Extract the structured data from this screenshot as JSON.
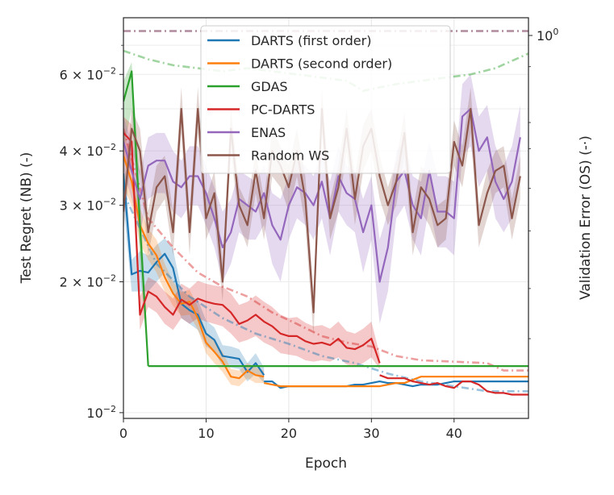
{
  "chart_data": {
    "type": "line",
    "title": "",
    "xlabel": "Epoch",
    "ylabel": "Test Regret (NB) (-)",
    "ylabel_right": "Validation Error (OS) (-·)",
    "xlim": [
      0,
      49
    ],
    "ylim": [
      0.0097,
      0.081
    ],
    "yscale": "log",
    "grid": true,
    "legend_position": "top-center",
    "x_ticks": [
      {
        "value": 0,
        "label": "0"
      },
      {
        "value": 10,
        "label": "10"
      },
      {
        "value": 20,
        "label": "20"
      },
      {
        "value": 30,
        "label": "30"
      },
      {
        "value": 40,
        "label": "40"
      }
    ],
    "y_ticks": [
      {
        "value": 0.01,
        "mantissa": "",
        "exponent": "−2"
      },
      {
        "value": 0.02,
        "mantissa": "2 × ",
        "exponent": "−2"
      },
      {
        "value": 0.03,
        "mantissa": "3 × ",
        "exponent": "−2"
      },
      {
        "value": 0.04,
        "mantissa": "4 × ",
        "exponent": "−2"
      },
      {
        "value": 0.06,
        "mantissa": "6 × ",
        "exponent": "−2"
      }
    ],
    "y_minor_ticks": [
      0.05,
      0.07
    ],
    "y2_tick_label": {
      "base": "10",
      "exponent": "0"
    },
    "series": [
      {
        "name": "DARTS (first order)",
        "color": "#1f77b4",
        "x": [
          0,
          1,
          2,
          3,
          4,
          5,
          6,
          7,
          8,
          9,
          10,
          11,
          12,
          13,
          14,
          15,
          16,
          17
        ],
        "values": [
          0.0355,
          0.0208,
          0.0212,
          0.021,
          0.0222,
          0.0232,
          0.0215,
          0.0178,
          0.0172,
          0.0168,
          0.0152,
          0.0147,
          0.0135,
          0.0134,
          0.0133,
          0.0124,
          0.013,
          0.0122
        ],
        "band_low": [
          0.03,
          0.019,
          0.019,
          0.019,
          0.02,
          0.021,
          0.019,
          0.0165,
          0.016,
          0.0155,
          0.0142,
          0.0138,
          0.0128,
          0.0127,
          0.0126,
          0.0118,
          0.0123,
          0.0117
        ],
        "band_high": [
          0.041,
          0.0225,
          0.0235,
          0.023,
          0.0243,
          0.0252,
          0.0238,
          0.0192,
          0.0185,
          0.0182,
          0.0163,
          0.0157,
          0.0143,
          0.0142,
          0.014,
          0.013,
          0.0137,
          0.0127
        ]
      },
      {
        "name": "DARTS (second order)",
        "color": "#ff7f0e",
        "x": [
          0,
          1,
          2,
          3,
          4,
          5,
          6,
          7,
          8,
          9,
          10,
          11,
          12,
          13,
          14,
          15,
          16,
          17
        ],
        "values": [
          0.039,
          0.034,
          0.027,
          0.0245,
          0.023,
          0.0205,
          0.0188,
          0.0178,
          0.018,
          0.0165,
          0.0145,
          0.0138,
          0.0131,
          0.0121,
          0.012,
          0.0125,
          0.0122,
          0.0121
        ],
        "band_low": [
          0.033,
          0.03,
          0.0245,
          0.0225,
          0.021,
          0.019,
          0.0176,
          0.0167,
          0.0168,
          0.0155,
          0.0137,
          0.013,
          0.0124,
          0.0116,
          0.0115,
          0.012,
          0.0117,
          0.0117
        ],
        "band_high": [
          0.045,
          0.038,
          0.0295,
          0.0265,
          0.025,
          0.022,
          0.02,
          0.0189,
          0.0192,
          0.0175,
          0.0153,
          0.0146,
          0.0138,
          0.0126,
          0.0125,
          0.013,
          0.0127,
          0.0125
        ]
      },
      {
        "name": "GDAS",
        "color": "#2ca02c",
        "x": [
          0,
          1,
          2,
          3
        ],
        "values": [
          0.052,
          0.061,
          0.027,
          0.0128
        ],
        "band_low": [
          0.04,
          0.05,
          0.022,
          0.0127
        ],
        "band_high": [
          0.058,
          0.064,
          0.033,
          0.0129
        ]
      },
      {
        "name": "PC-DARTS",
        "color": "#d62728",
        "x": [
          0,
          1,
          2,
          3,
          4,
          5,
          6,
          7,
          8,
          9,
          10,
          11,
          12,
          13,
          14,
          15,
          16,
          17,
          18,
          19,
          20,
          21,
          22,
          23,
          24,
          25,
          26,
          27,
          28,
          29,
          30,
          31
        ],
        "values": [
          0.044,
          0.042,
          0.0168,
          0.019,
          0.0185,
          0.0175,
          0.0168,
          0.0182,
          0.0177,
          0.0183,
          0.018,
          0.0178,
          0.0177,
          0.017,
          0.016,
          0.0163,
          0.0168,
          0.0162,
          0.0158,
          0.0152,
          0.015,
          0.015,
          0.0146,
          0.0144,
          0.0145,
          0.0143,
          0.0148,
          0.0141,
          0.014,
          0.0143,
          0.0148,
          0.013
        ],
        "band_low": [
          0.038,
          0.036,
          0.0155,
          0.0175,
          0.017,
          0.016,
          0.0155,
          0.0165,
          0.016,
          0.0165,
          0.0162,
          0.016,
          0.0158,
          0.0152,
          0.0145,
          0.0147,
          0.015,
          0.0145,
          0.0142,
          0.0137,
          0.0136,
          0.0135,
          0.0132,
          0.0131,
          0.0132,
          0.0131,
          0.0134,
          0.0129,
          0.0128,
          0.013,
          0.0134,
          0.0126
        ],
        "band_high": [
          0.048,
          0.046,
          0.0185,
          0.0205,
          0.02,
          0.019,
          0.0183,
          0.0198,
          0.0193,
          0.0201,
          0.0198,
          0.0196,
          0.0195,
          0.0188,
          0.0177,
          0.018,
          0.0186,
          0.018,
          0.0175,
          0.0168,
          0.0165,
          0.0166,
          0.0161,
          0.0158,
          0.0159,
          0.0156,
          0.0162,
          0.0154,
          0.0152,
          0.0156,
          0.0162,
          0.0136
        ]
      },
      {
        "name": "ENAS",
        "color": "#9467bd",
        "x": [
          0,
          1,
          2,
          3,
          4,
          5,
          6,
          7,
          8,
          9,
          10,
          11,
          12,
          13,
          14,
          15,
          16,
          17,
          18,
          19,
          20,
          21,
          22,
          23,
          24,
          25,
          26,
          27,
          28,
          29,
          30,
          31,
          32,
          33,
          34,
          35,
          36,
          37,
          38,
          39,
          40,
          41,
          42,
          43,
          44,
          45,
          46,
          47,
          48
        ],
        "values": [
          0.042,
          0.036,
          0.031,
          0.037,
          0.038,
          0.038,
          0.034,
          0.033,
          0.035,
          0.035,
          0.032,
          0.028,
          0.024,
          0.026,
          0.031,
          0.03,
          0.029,
          0.032,
          0.027,
          0.025,
          0.03,
          0.033,
          0.032,
          0.03,
          0.034,
          0.028,
          0.035,
          0.032,
          0.031,
          0.026,
          0.03,
          0.02,
          0.024,
          0.034,
          0.036,
          0.03,
          0.028,
          0.036,
          0.029,
          0.029,
          0.028,
          0.048,
          0.05,
          0.04,
          0.043,
          0.034,
          0.031,
          0.034,
          0.043
        ],
        "band_low": [
          0.036,
          0.031,
          0.026,
          0.031,
          0.032,
          0.032,
          0.029,
          0.028,
          0.03,
          0.03,
          0.027,
          0.024,
          0.02,
          0.022,
          0.026,
          0.025,
          0.025,
          0.027,
          0.022,
          0.02,
          0.025,
          0.028,
          0.027,
          0.025,
          0.028,
          0.023,
          0.029,
          0.027,
          0.026,
          0.021,
          0.025,
          0.016,
          0.019,
          0.028,
          0.03,
          0.025,
          0.023,
          0.03,
          0.024,
          0.024,
          0.023,
          0.039,
          0.041,
          0.033,
          0.036,
          0.028,
          0.026,
          0.028,
          0.036
        ],
        "band_high": [
          0.048,
          0.042,
          0.036,
          0.043,
          0.044,
          0.044,
          0.04,
          0.038,
          0.041,
          0.041,
          0.037,
          0.033,
          0.029,
          0.031,
          0.036,
          0.035,
          0.034,
          0.037,
          0.032,
          0.031,
          0.035,
          0.038,
          0.037,
          0.035,
          0.04,
          0.034,
          0.041,
          0.037,
          0.036,
          0.031,
          0.035,
          0.025,
          0.029,
          0.04,
          0.042,
          0.035,
          0.034,
          0.042,
          0.035,
          0.035,
          0.034,
          0.057,
          0.06,
          0.048,
          0.051,
          0.041,
          0.037,
          0.041,
          0.051
        ]
      },
      {
        "name": "Random WS",
        "color": "#8c564b",
        "x": [
          0,
          1,
          2,
          3,
          4,
          5,
          6,
          7,
          8,
          9,
          10,
          11,
          12,
          13,
          14,
          15,
          16,
          17,
          18,
          19,
          20,
          21,
          22,
          23,
          24,
          25,
          26,
          27,
          28,
          29,
          30,
          31,
          32,
          33,
          34,
          35,
          36,
          37,
          38,
          39,
          40,
          41,
          42,
          43,
          44,
          45,
          46,
          47,
          48
        ],
        "values": [
          0.029,
          0.045,
          0.04,
          0.026,
          0.033,
          0.035,
          0.026,
          0.05,
          0.026,
          0.05,
          0.028,
          0.032,
          0.02,
          0.045,
          0.03,
          0.027,
          0.036,
          0.028,
          0.04,
          0.037,
          0.033,
          0.04,
          0.031,
          0.017,
          0.05,
          0.028,
          0.033,
          0.045,
          0.031,
          0.041,
          0.045,
          0.035,
          0.03,
          0.034,
          0.044,
          0.026,
          0.033,
          0.031,
          0.027,
          0.028,
          0.042,
          0.037,
          0.05,
          0.027,
          0.032,
          0.036,
          0.037,
          0.028,
          0.035
        ],
        "band_low": [
          0.026,
          0.04,
          0.035,
          0.023,
          0.029,
          0.031,
          0.023,
          0.044,
          0.023,
          0.044,
          0.025,
          0.028,
          0.018,
          0.04,
          0.027,
          0.024,
          0.032,
          0.025,
          0.035,
          0.033,
          0.029,
          0.035,
          0.027,
          0.015,
          0.044,
          0.025,
          0.029,
          0.04,
          0.027,
          0.036,
          0.04,
          0.031,
          0.027,
          0.03,
          0.039,
          0.023,
          0.029,
          0.027,
          0.024,
          0.025,
          0.037,
          0.033,
          0.044,
          0.024,
          0.028,
          0.032,
          0.033,
          0.025,
          0.031
        ],
        "band_high": [
          0.032,
          0.05,
          0.045,
          0.029,
          0.037,
          0.039,
          0.029,
          0.056,
          0.029,
          0.056,
          0.031,
          0.036,
          0.022,
          0.05,
          0.033,
          0.03,
          0.04,
          0.031,
          0.045,
          0.041,
          0.037,
          0.045,
          0.035,
          0.019,
          0.056,
          0.031,
          0.037,
          0.05,
          0.035,
          0.046,
          0.05,
          0.039,
          0.033,
          0.038,
          0.049,
          0.029,
          0.037,
          0.035,
          0.03,
          0.031,
          0.047,
          0.041,
          0.056,
          0.03,
          0.036,
          0.04,
          0.041,
          0.031,
          0.039
        ]
      }
    ],
    "flat_tails": [
      {
        "series": "DARTS (first order)",
        "color": "#1f77b4",
        "x": [
          17,
          18,
          19,
          20,
          21,
          22,
          23,
          24,
          25,
          26,
          27,
          28,
          29,
          30,
          31,
          32,
          33,
          34,
          35,
          36,
          37,
          38,
          39,
          40,
          41,
          42,
          43,
          44,
          45,
          46,
          47,
          48,
          49
        ],
        "values": [
          0.0118,
          0.0118,
          0.0114,
          0.0115,
          0.0115,
          0.0115,
          0.0115,
          0.0115,
          0.0115,
          0.0115,
          0.0115,
          0.0116,
          0.0116,
          0.0117,
          0.0118,
          0.0117,
          0.0117,
          0.0116,
          0.0115,
          0.0116,
          0.0116,
          0.0116,
          0.0117,
          0.0118,
          0.0118,
          0.0118,
          0.0118,
          0.0118,
          0.0118,
          0.0118,
          0.0118,
          0.0118,
          0.0118
        ]
      },
      {
        "series": "DARTS (second order)",
        "color": "#ff7f0e",
        "x": [
          17,
          18,
          19,
          20,
          21,
          22,
          23,
          24,
          25,
          26,
          27,
          28,
          29,
          30,
          31,
          32,
          33,
          34,
          35,
          36,
          37,
          38,
          39,
          40,
          41,
          42,
          43,
          44,
          45,
          46,
          47,
          48,
          49
        ],
        "values": [
          0.0117,
          0.0116,
          0.0115,
          0.0115,
          0.0115,
          0.0115,
          0.0115,
          0.0115,
          0.0115,
          0.0115,
          0.0115,
          0.0115,
          0.0115,
          0.0115,
          0.0115,
          0.0116,
          0.0117,
          0.0117,
          0.0119,
          0.0121,
          0.0121,
          0.0121,
          0.0121,
          0.0121,
          0.0121,
          0.0121,
          0.0121,
          0.0121,
          0.0121,
          0.0121,
          0.0121,
          0.0121,
          0.0121
        ]
      },
      {
        "series": "GDAS",
        "color": "#2ca02c",
        "x": [
          3,
          49
        ],
        "values": [
          0.0128,
          0.0128
        ]
      },
      {
        "series": "PC-DARTS",
        "color": "#d62728",
        "x": [
          31,
          32,
          33,
          34,
          35,
          36,
          37,
          38,
          39,
          40,
          41,
          42,
          43,
          44,
          45,
          46,
          47,
          48,
          49
        ],
        "values": [
          0.0122,
          0.012,
          0.012,
          0.012,
          0.0118,
          0.0117,
          0.0116,
          0.0117,
          0.0115,
          0.0114,
          0.0118,
          0.0118,
          0.0116,
          0.0112,
          0.0111,
          0.0111,
          0.011,
          0.011,
          0.011
        ]
      }
    ],
    "validation_series": [
      {
        "series": "GDAS",
        "color": "#2ca02c",
        "x": [
          0,
          3,
          6,
          9,
          12,
          15,
          18,
          21,
          24,
          27,
          29,
          31,
          33,
          36,
          39,
          42,
          45,
          49
        ],
        "values": [
          0.068,
          0.065,
          0.063,
          0.062,
          0.061,
          0.062,
          0.061,
          0.06,
          0.059,
          0.058,
          0.055,
          0.056,
          0.057,
          0.058,
          0.059,
          0.06,
          0.062,
          0.067
        ]
      },
      {
        "series": "ENAS",
        "color": "#9467bd",
        "x": [
          0,
          49
        ],
        "values": [
          0.0755,
          0.0755
        ]
      },
      {
        "series": "Random WS",
        "color": "#8c564b",
        "x": [
          0,
          49
        ],
        "values": [
          0.0755,
          0.0755
        ]
      },
      {
        "series": "PC-DARTS",
        "color": "#d62728",
        "x": [
          0,
          3,
          6,
          9,
          12,
          15,
          18,
          21,
          24,
          27,
          30,
          33,
          36,
          40,
          44,
          46,
          49
        ],
        "values": [
          0.045,
          0.028,
          0.024,
          0.021,
          0.0195,
          0.0185,
          0.017,
          0.016,
          0.015,
          0.0145,
          0.0142,
          0.0135,
          0.0132,
          0.0131,
          0.013,
          0.0125,
          0.0125
        ]
      },
      {
        "series": "DARTS (first order)",
        "color": "#1f77b4",
        "x": [
          0,
          4,
          8,
          12,
          16,
          20,
          24,
          28,
          32,
          36,
          40,
          44,
          49
        ],
        "values": [
          0.032,
          0.022,
          0.0185,
          0.0165,
          0.0152,
          0.0144,
          0.0135,
          0.013,
          0.0123,
          0.0118,
          0.0115,
          0.0112,
          0.0112
        ]
      }
    ],
    "legend": [
      "DARTS (first order)",
      "DARTS (second order)",
      "GDAS",
      "PC-DARTS",
      "ENAS",
      "Random WS"
    ]
  }
}
